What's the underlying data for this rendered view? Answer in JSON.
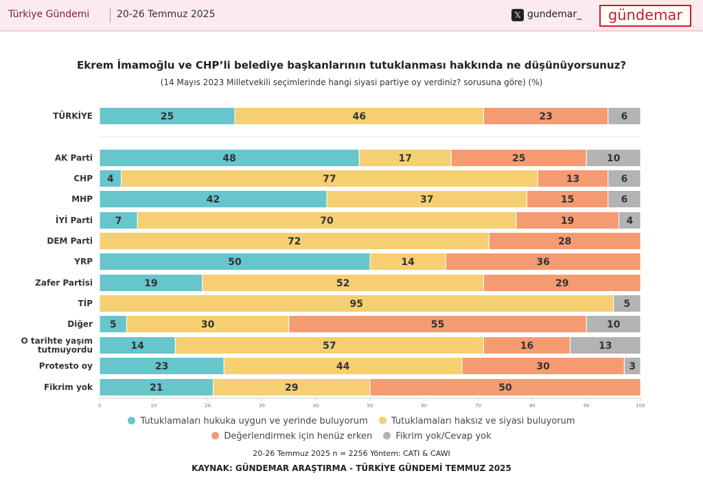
{
  "header": {
    "brand": "Türkiye Gündemi",
    "date": "20-26 Temmuz 2025",
    "x_icon": "x-logo-icon",
    "handle": "gundemar_",
    "logo": "gündemar"
  },
  "chart_data": {
    "type": "bar",
    "orientation": "horizontal",
    "stacked": true,
    "title": "Ekrem İmamoğlu ve CHP’li belediye başkanlarının tutuklanması hakkında ne düşünüyorsunuz?",
    "subtitle": "(14 Mayıs 2023 Milletvekili seçimlerinde hangi siyasi partiye oy verdiniz? sorusuna göre) (%)",
    "categories": [
      "TÜRKİYE",
      "AK Parti",
      "CHP",
      "MHP",
      "İYİ Parti",
      "DEM Parti",
      "YRP",
      "Zafer Partisi",
      "TİP",
      "Diğer",
      "O tarihte yaşım tutmuyordu",
      "Protesto oy",
      "Fikrim yok"
    ],
    "series": [
      {
        "name": "Tutuklamaları hukuka uygun ve yerinde buluyorum",
        "color": "#67c5cc",
        "values": [
          25,
          48,
          4,
          42,
          7,
          0,
          50,
          19,
          0,
          5,
          14,
          23,
          21
        ]
      },
      {
        "name": "Tutuklamaları haksız ve siyasi buluyorum",
        "color": "#f5cf72",
        "values": [
          46,
          17,
          77,
          37,
          70,
          72,
          14,
          52,
          95,
          30,
          57,
          44,
          29
        ]
      },
      {
        "name": "Değerlendirmek için henüz erken",
        "color": "#f59b72",
        "values": [
          23,
          25,
          13,
          15,
          19,
          28,
          36,
          29,
          0,
          55,
          16,
          30,
          50
        ]
      },
      {
        "name": "Fikrim yok/Cevap yok",
        "color": "#b3b3b3",
        "values": [
          6,
          10,
          6,
          6,
          4,
          0,
          0,
          0,
          5,
          10,
          13,
          3,
          0
        ]
      }
    ],
    "xlim": [
      0,
      100
    ],
    "xticks": [
      0,
      10,
      20,
      30,
      40,
      50,
      60,
      70,
      80,
      90,
      100
    ],
    "legend": "bottom",
    "grid": false
  },
  "footer": {
    "note": "20-26 Temmuz 2025 n = 2256 Yöntem: CATI & CAWI",
    "source": "KAYNAK: GÜNDEMAR ARAŞTIRMA - TÜRKİYE GÜNDEMİ TEMMUZ 2025"
  }
}
